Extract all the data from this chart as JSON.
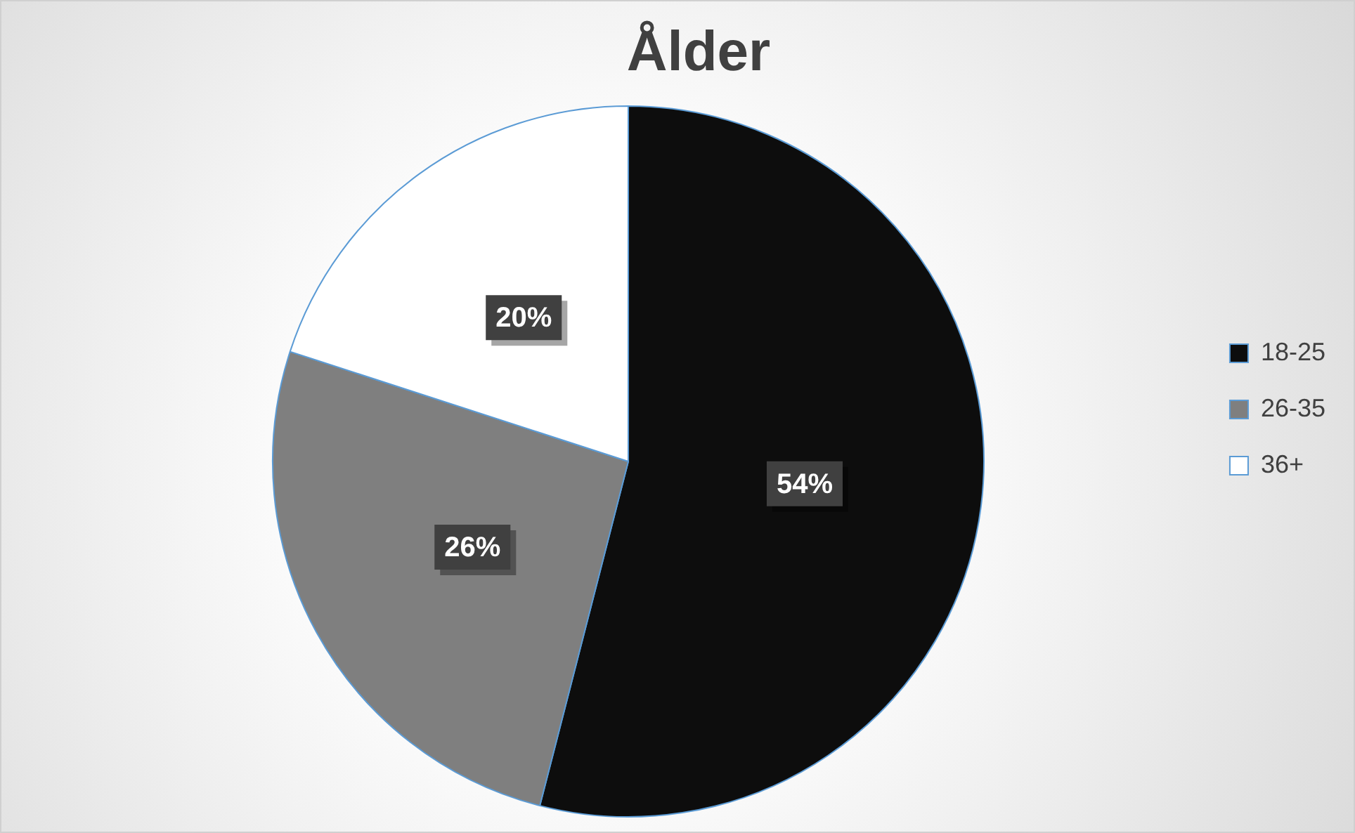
{
  "chart_data": {
    "type": "pie",
    "title": "Ålder",
    "categories": [
      "18-25",
      "26-35",
      "36+"
    ],
    "values": [
      54,
      26,
      20
    ],
    "colors": [
      "#0d0d0d",
      "#7f7f7f",
      "#ffffff"
    ],
    "value_labels": [
      "54%",
      "26%",
      "20%"
    ],
    "legend": "right"
  }
}
